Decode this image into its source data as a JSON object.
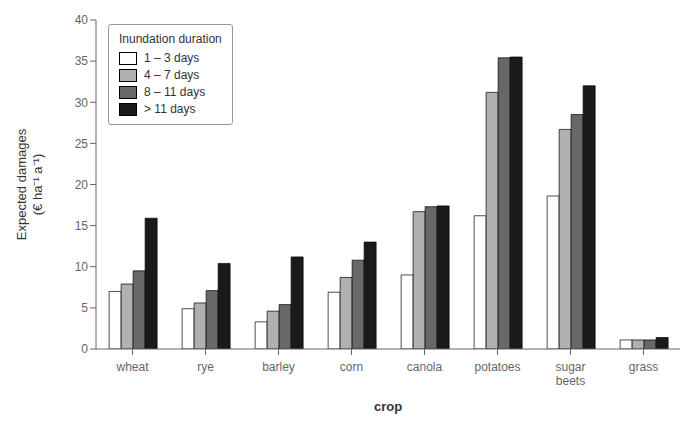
{
  "chart_data": {
    "type": "bar",
    "categories": [
      "wheat",
      "rye",
      "barley",
      "corn",
      "canola",
      "potatoes",
      "sugar\nbeets",
      "grass"
    ],
    "series": [
      {
        "name": "1 – 3 days",
        "color": "#ffffff",
        "values": [
          7.0,
          4.9,
          3.3,
          6.9,
          9.0,
          16.2,
          18.6,
          1.1
        ]
      },
      {
        "name": "4 – 7 days",
        "color": "#b0b0b0",
        "values": [
          7.9,
          5.6,
          4.6,
          8.7,
          16.7,
          31.2,
          26.7,
          1.1
        ]
      },
      {
        "name": "8 – 11 days",
        "color": "#686868",
        "values": [
          9.5,
          7.1,
          5.4,
          10.8,
          17.3,
          35.4,
          28.5,
          1.1
        ]
      },
      {
        "name": "> 11 days",
        "color": "#1a1a1a",
        "values": [
          15.9,
          10.4,
          11.2,
          13.0,
          17.4,
          35.5,
          32.0,
          1.4
        ]
      }
    ],
    "xlabel": "crop",
    "ylabel": "Expected damages\n(€ ha⁻¹ a⁻¹)",
    "legend_title": "Inundation duration",
    "legend": "upper left",
    "grid": false,
    "ylim": [
      0,
      40
    ],
    "yticks": [
      0,
      5,
      10,
      15,
      20,
      25,
      30,
      35,
      40
    ]
  }
}
